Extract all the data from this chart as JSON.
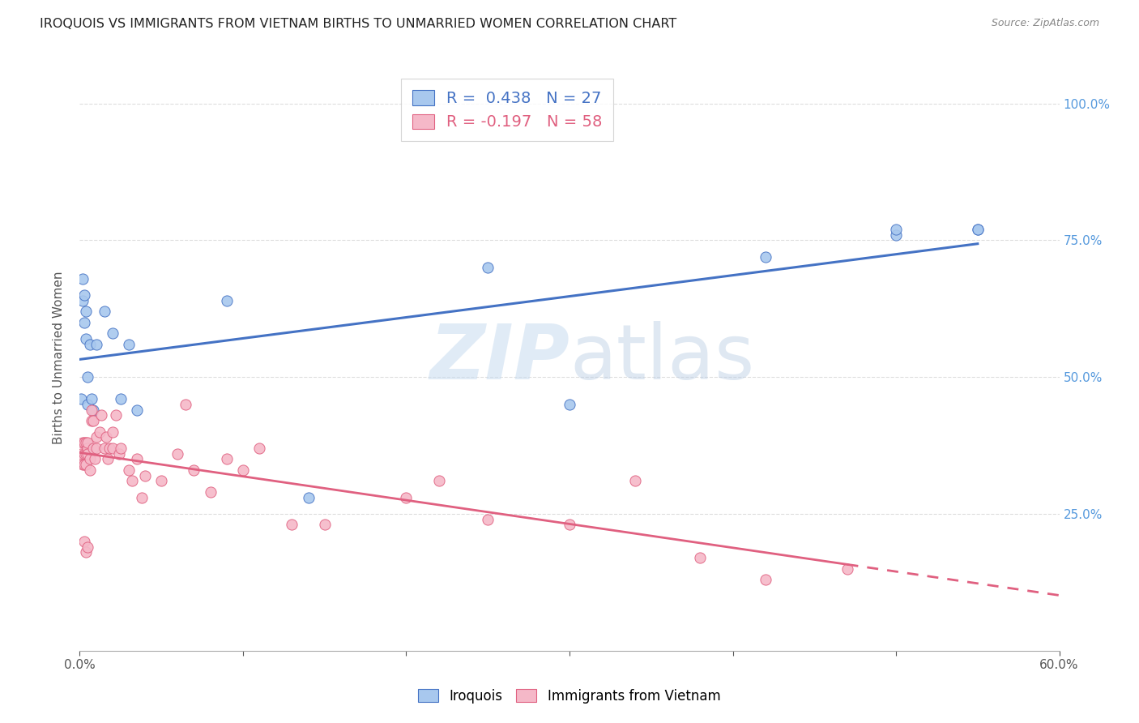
{
  "title": "IROQUOIS VS IMMIGRANTS FROM VIETNAM BIRTHS TO UNMARRIED WOMEN CORRELATION CHART",
  "source": "Source: ZipAtlas.com",
  "ylabel": "Births to Unmarried Women",
  "ytick_labels": [
    "100.0%",
    "75.0%",
    "50.0%",
    "25.0%"
  ],
  "ytick_values": [
    1.0,
    0.75,
    0.5,
    0.25
  ],
  "xlim": [
    0.0,
    0.6
  ],
  "ylim": [
    0.0,
    1.07
  ],
  "legend_label1": "Iroquois",
  "legend_label2": "Immigrants from Vietnam",
  "r1": 0.438,
  "n1": 27,
  "r2": -0.197,
  "n2": 58,
  "color_blue": "#A8C8EE",
  "color_pink": "#F5B8C8",
  "line_blue": "#4472C4",
  "line_pink": "#E06080",
  "iroquois_x": [
    0.001,
    0.002,
    0.002,
    0.003,
    0.003,
    0.004,
    0.004,
    0.005,
    0.005,
    0.006,
    0.007,
    0.008,
    0.01,
    0.015,
    0.02,
    0.025,
    0.03,
    0.035,
    0.09,
    0.14,
    0.25,
    0.3,
    0.42,
    0.5,
    0.55,
    0.5,
    0.55
  ],
  "iroquois_y": [
    0.46,
    0.68,
    0.64,
    0.65,
    0.6,
    0.62,
    0.57,
    0.5,
    0.45,
    0.56,
    0.46,
    0.44,
    0.56,
    0.62,
    0.58,
    0.46,
    0.56,
    0.44,
    0.64,
    0.28,
    0.7,
    0.45,
    0.72,
    0.76,
    0.77,
    0.77,
    0.77
  ],
  "vietnam_x": [
    0.001,
    0.002,
    0.002,
    0.003,
    0.003,
    0.003,
    0.004,
    0.004,
    0.004,
    0.005,
    0.005,
    0.005,
    0.006,
    0.006,
    0.007,
    0.007,
    0.008,
    0.008,
    0.009,
    0.01,
    0.01,
    0.012,
    0.013,
    0.015,
    0.016,
    0.017,
    0.018,
    0.02,
    0.02,
    0.022,
    0.024,
    0.025,
    0.03,
    0.032,
    0.035,
    0.038,
    0.04,
    0.05,
    0.06,
    0.065,
    0.07,
    0.08,
    0.09,
    0.1,
    0.11,
    0.13,
    0.15,
    0.2,
    0.22,
    0.25,
    0.3,
    0.34,
    0.38,
    0.42,
    0.47,
    0.003,
    0.004,
    0.005
  ],
  "vietnam_y": [
    0.36,
    0.34,
    0.38,
    0.36,
    0.34,
    0.38,
    0.36,
    0.34,
    0.38,
    0.37,
    0.36,
    0.38,
    0.35,
    0.33,
    0.44,
    0.42,
    0.42,
    0.37,
    0.35,
    0.37,
    0.39,
    0.4,
    0.43,
    0.37,
    0.39,
    0.35,
    0.37,
    0.4,
    0.37,
    0.43,
    0.36,
    0.37,
    0.33,
    0.31,
    0.35,
    0.28,
    0.32,
    0.31,
    0.36,
    0.45,
    0.33,
    0.29,
    0.35,
    0.33,
    0.37,
    0.23,
    0.23,
    0.28,
    0.31,
    0.24,
    0.23,
    0.31,
    0.17,
    0.13,
    0.15,
    0.2,
    0.18,
    0.19
  ]
}
